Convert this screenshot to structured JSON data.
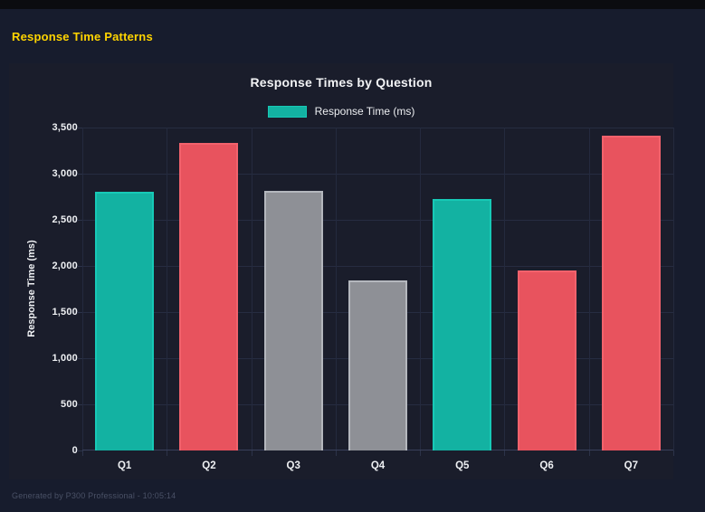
{
  "header": {
    "title": "Response Time Patterns",
    "title_color": "#ffd400"
  },
  "chart": {
    "title": "Response Times by Question",
    "legend_label": "Response Time (ms)"
  },
  "chart_data": {
    "type": "bar",
    "title": "Response Times by Question",
    "categories": [
      "Q1",
      "Q2",
      "Q3",
      "Q4",
      "Q5",
      "Q6",
      "Q7"
    ],
    "values": [
      2800,
      3330,
      2810,
      1840,
      2730,
      1950,
      3410
    ],
    "bar_color_keys": [
      "teal",
      "red",
      "gray",
      "gray",
      "teal",
      "red",
      "red"
    ],
    "colors": {
      "teal": {
        "fill": "#13b2a2",
        "border": "#17c9b6"
      },
      "red": {
        "fill": "#e8535e",
        "border": "#f2626c"
      },
      "gray": {
        "fill": "#8e9096",
        "border": "#b4b7bd"
      }
    },
    "xlabel": "",
    "ylabel": "Response Time (ms)",
    "ylim": [
      0,
      3500
    ],
    "ytick_step": 500,
    "ytick_labels": [
      "0",
      "500",
      "1,000",
      "1,500",
      "2,000",
      "2,500",
      "3,000",
      "3,500"
    ],
    "legend": {
      "label": "Response Time (ms)",
      "position": "top",
      "swatch": "teal"
    },
    "grid": true
  },
  "footer": {
    "text": "Generated by P300 Professional - 10:05:14"
  }
}
